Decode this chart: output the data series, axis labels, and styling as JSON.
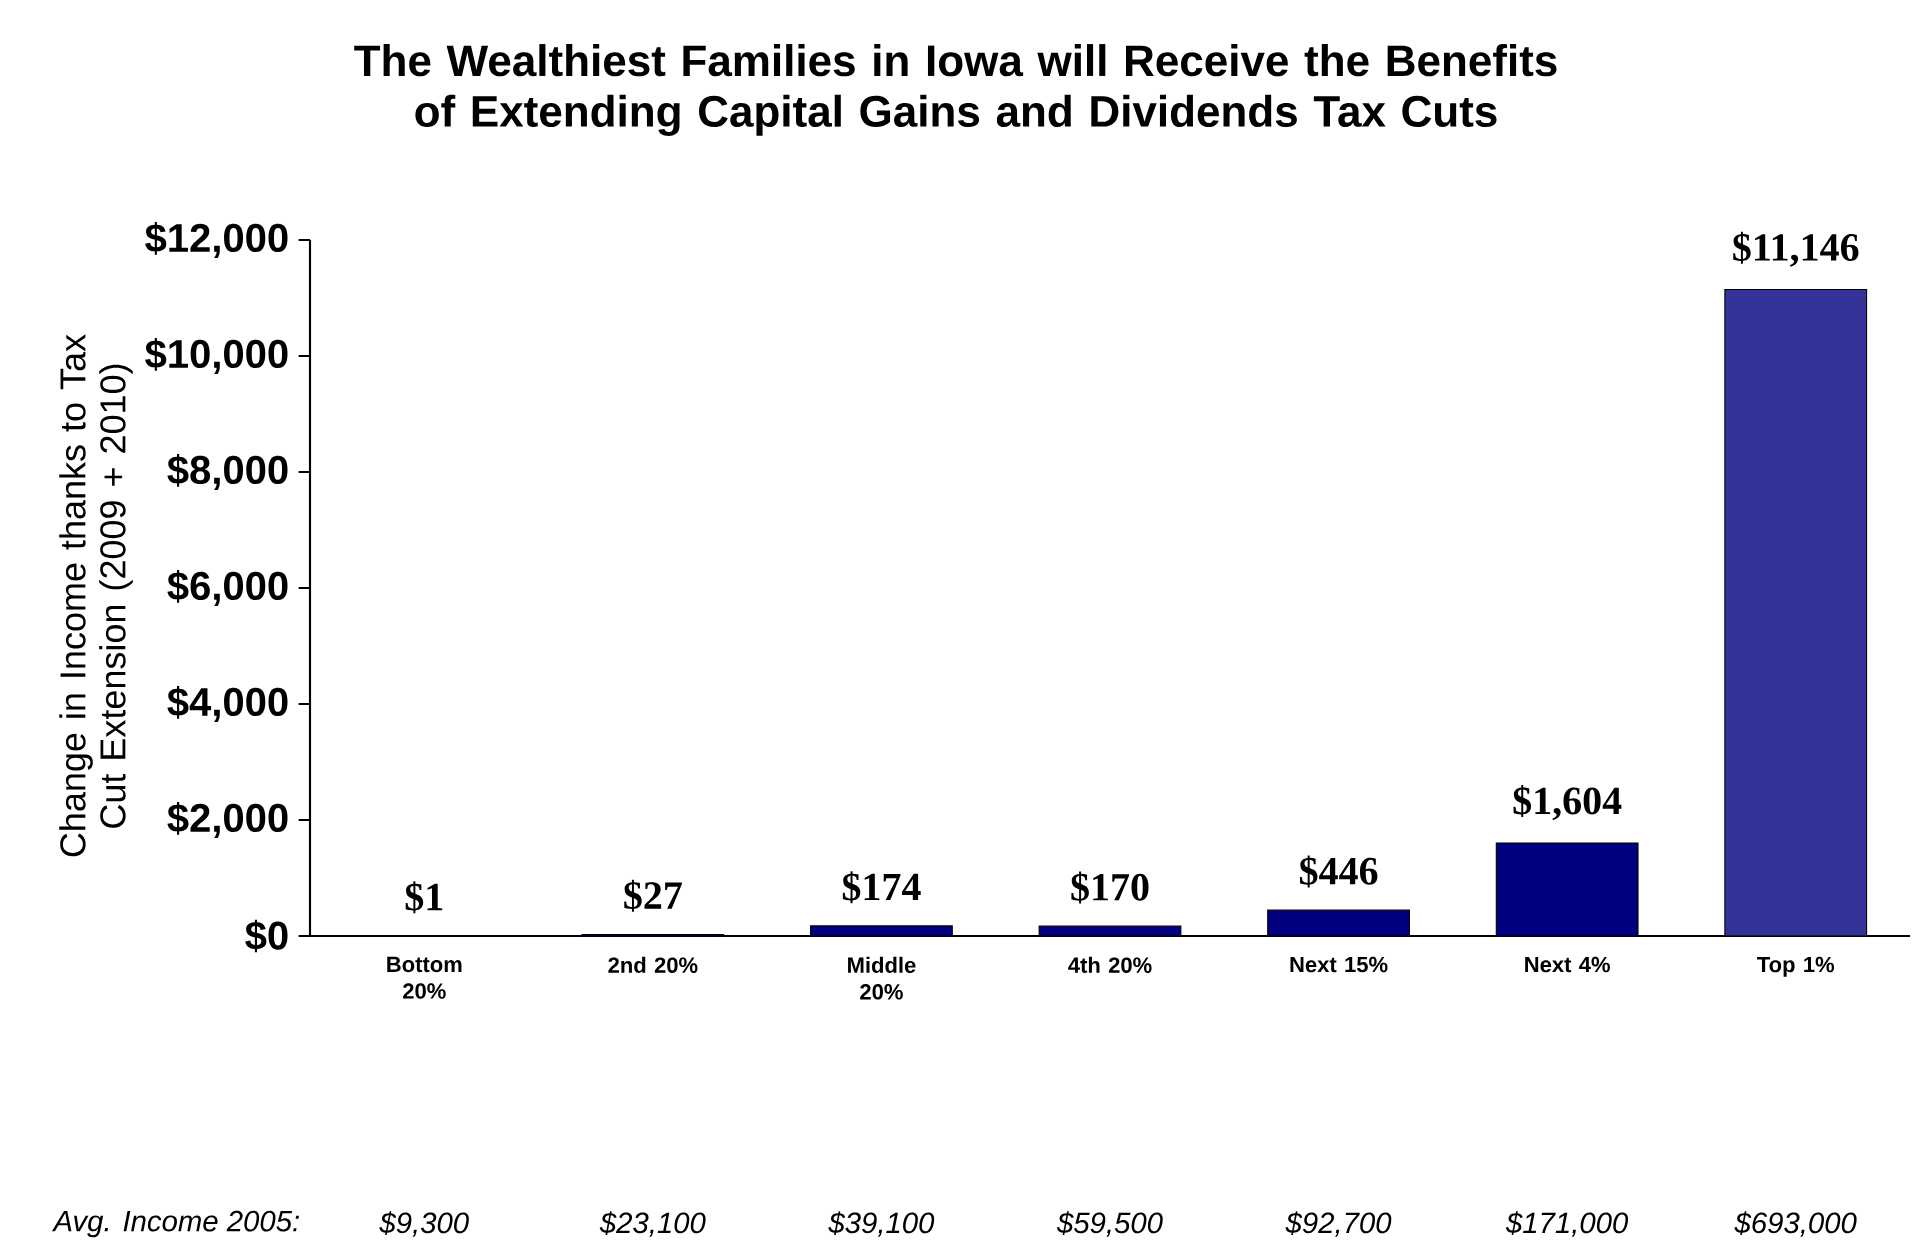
{
  "chart_data": {
    "type": "bar",
    "title": "The Wealthiest Families in Iowa will Receive the Benefits of Extending Capital Gains and Dividends Tax Cuts",
    "ylabel": "Change in Income thanks to Tax Cut Extension (2009 + 2010)",
    "categories": [
      "Bottom 20%",
      "2nd 20%",
      "Middle 20%",
      "4th 20%",
      "Next 15%",
      "Next 4%",
      "Top 1%"
    ],
    "values": [
      1,
      27,
      174,
      170,
      446,
      1604,
      11146
    ],
    "value_labels": [
      "$1",
      "$27",
      "$174",
      "$170",
      "$446",
      "$1,604",
      "$11,146"
    ],
    "colors": [
      "#000080",
      "#000080",
      "#000080",
      "#000080",
      "#000080",
      "#000080",
      "#333399"
    ],
    "ylim": [
      0,
      12000
    ],
    "yticks": [
      {
        "value": 0,
        "label": "$0"
      },
      {
        "value": 2000,
        "label": "$2,000"
      },
      {
        "value": 4000,
        "label": "$4,000"
      },
      {
        "value": 6000,
        "label": "$6,000"
      },
      {
        "value": 8000,
        "label": "$8,000"
      },
      {
        "value": 10000,
        "label": "$10,000"
      },
      {
        "value": 12000,
        "label": "$12,000"
      }
    ],
    "annotations": [
      "Avg. Income 2005:",
      "$9,300",
      "$23,100",
      "$39,100",
      "$59,500",
      "$92,700",
      "$171,000",
      "$693,000"
    ]
  }
}
